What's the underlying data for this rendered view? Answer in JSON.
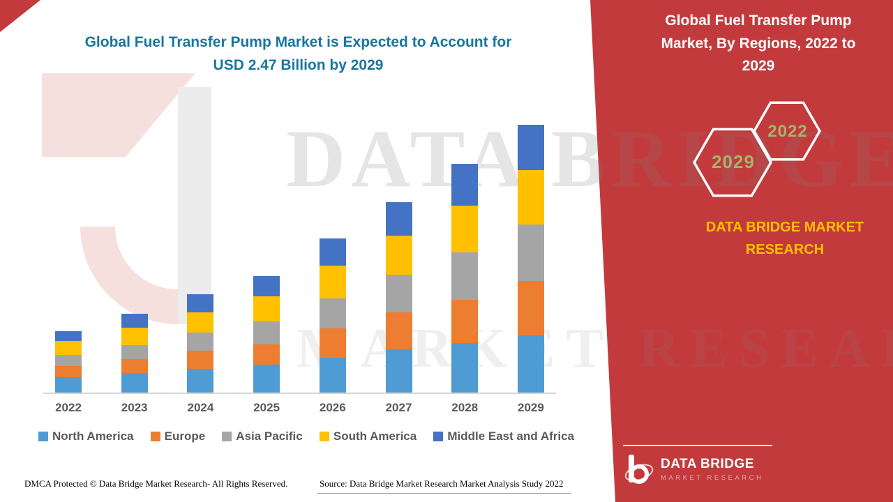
{
  "header": {
    "left_title_line1": "Global Fuel Transfer Pump Market is Expected to Account for",
    "left_title_line2": "USD 2.47 Billion by 2029",
    "headline_color": "#17769E",
    "right_title": "Global Fuel Transfer Pump Market, By Regions, 2022 to 2029"
  },
  "watermark": {
    "line1": "DATA BRIDGE",
    "line2": "MARKET RESEARCH"
  },
  "side_panel": {
    "panel_color": "#C33A3D",
    "accent_gold": "#FFC000",
    "hex_label_color": "#A6B36C",
    "hexagon_left_label": "2029",
    "hexagon_right_label": "2022",
    "brand_line1": "DATA BRIDGE MARKET",
    "brand_line2": "RESEARCH"
  },
  "footer": {
    "dmca": "DMCA Protected © Data Bridge Market Research- All Rights Reserved.",
    "source": "Source: Data Bridge Market Research Market Analysis Study 2022",
    "logo_title": "DATA BRIDGE",
    "logo_subtitle": "MARKET RESEARCH"
  },
  "chart_data": {
    "type": "bar",
    "stacked": true,
    "title": "Global Fuel Transfer Pump Market, By Regions, 2022 to 2029",
    "unit": "USD Billion",
    "categories": [
      "2022",
      "2023",
      "2024",
      "2025",
      "2026",
      "2027",
      "2028",
      "2029"
    ],
    "series": [
      {
        "name": "North America",
        "color": "#4F9BD4",
        "values": [
          0.14,
          0.18,
          0.22,
          0.26,
          0.32,
          0.4,
          0.46,
          0.53
        ]
      },
      {
        "name": "Europe",
        "color": "#ED7D31",
        "values": [
          0.1,
          0.13,
          0.17,
          0.19,
          0.27,
          0.34,
          0.4,
          0.5
        ]
      },
      {
        "name": "Asia Pacific",
        "color": "#A5A5A5",
        "values": [
          0.1,
          0.13,
          0.17,
          0.21,
          0.28,
          0.35,
          0.44,
          0.52
        ]
      },
      {
        "name": "South America",
        "color": "#FFC000",
        "values": [
          0.13,
          0.16,
          0.19,
          0.23,
          0.3,
          0.36,
          0.43,
          0.5
        ]
      },
      {
        "name": "Middle East and Africa",
        "color": "#4472C4",
        "values": [
          0.09,
          0.13,
          0.17,
          0.19,
          0.25,
          0.31,
          0.39,
          0.42
        ]
      }
    ],
    "totals": [
      0.56,
      0.73,
      0.92,
      1.08,
      1.42,
      1.76,
      2.12,
      2.47
    ],
    "ylim": [
      0,
      2.6
    ],
    "grid": false,
    "legend_position": "bottom"
  }
}
